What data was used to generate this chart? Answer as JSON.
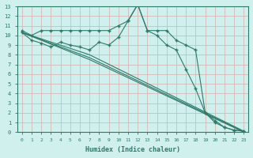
{
  "xlabel": "Humidex (Indice chaleur)",
  "bg_color": "#cff0ec",
  "grid_color": "#d4b8b8",
  "line_color": "#2d7a6a",
  "xlim": [
    -0.5,
    23.5
  ],
  "ylim": [
    0,
    13
  ],
  "xticks": [
    0,
    1,
    2,
    3,
    4,
    5,
    6,
    7,
    8,
    9,
    10,
    11,
    12,
    13,
    14,
    15,
    16,
    17,
    18,
    19,
    20,
    21,
    22,
    23
  ],
  "yticks": [
    0,
    1,
    2,
    3,
    4,
    5,
    6,
    7,
    8,
    9,
    10,
    11,
    12,
    13
  ],
  "series": [
    {
      "x": [
        0,
        1,
        2,
        3,
        4,
        5,
        6,
        7,
        8,
        9,
        10,
        11,
        12,
        13,
        14,
        15,
        16,
        17,
        18,
        19,
        20,
        21,
        22,
        23
      ],
      "y": [
        10.5,
        10.0,
        10.5,
        10.5,
        10.5,
        10.5,
        10.5,
        10.5,
        10.5,
        10.5,
        11.0,
        11.5,
        13.2,
        10.5,
        10.5,
        10.5,
        9.5,
        9.0,
        8.5,
        2.0,
        1.0,
        0.5,
        0.2,
        0.1
      ],
      "marker": "+"
    },
    {
      "x": [
        0,
        1,
        2,
        3,
        4,
        5,
        6,
        7,
        8,
        9,
        10,
        11,
        12,
        13,
        14,
        15,
        16,
        17,
        18,
        19,
        20,
        21,
        22,
        23
      ],
      "y": [
        10.3,
        9.5,
        9.2,
        8.8,
        9.3,
        9.0,
        8.8,
        8.5,
        9.3,
        9.0,
        9.8,
        11.5,
        13.2,
        10.5,
        10.0,
        9.0,
        8.5,
        6.5,
        4.5,
        2.0,
        1.2,
        0.5,
        0.2,
        0.1
      ],
      "marker": "+"
    },
    {
      "x": [
        0,
        7,
        23
      ],
      "y": [
        10.3,
        8.0,
        0.1
      ],
      "marker": null
    },
    {
      "x": [
        0,
        7,
        23
      ],
      "y": [
        10.3,
        7.7,
        0.05
      ],
      "marker": null
    },
    {
      "x": [
        0,
        7,
        23
      ],
      "y": [
        10.3,
        7.5,
        0.0
      ],
      "marker": null
    }
  ]
}
